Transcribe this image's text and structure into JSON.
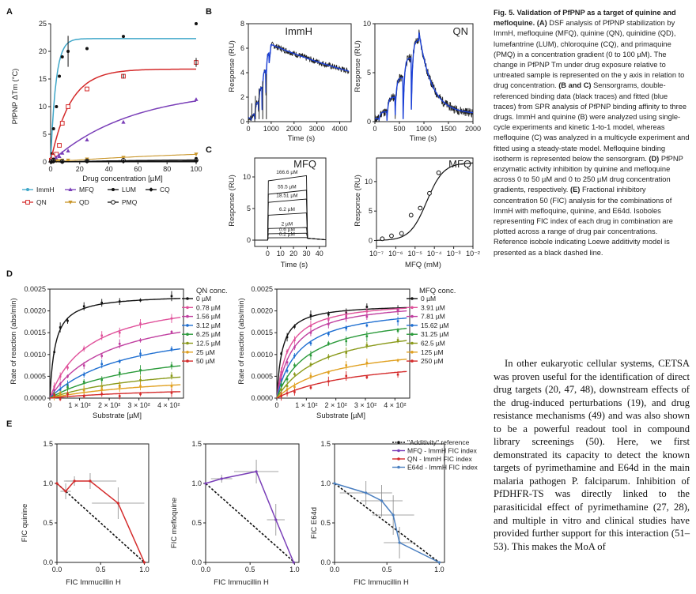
{
  "colors": {
    "blue": "#1f6fd1",
    "red": "#d42a2a",
    "purple": "#7a3fb8",
    "orange": "#c9962a",
    "teal": "#3fa7c9",
    "pink": "#e0509a",
    "magenta": "#c03fa0",
    "green": "#2a9a3a",
    "olive": "#8a9a1a",
    "gold": "#e0a020",
    "black": "#111111",
    "sprBlack": "#222222",
    "sprBlue": "#1a3fd6"
  },
  "panels": {
    "A": {
      "letter": "A",
      "xlabel": "Drug concentration [µM]",
      "ylabel": "PfPNP ΔTm (°C)"
    },
    "B": {
      "letter": "B",
      "left_title": "ImmH",
      "right_title": "QN",
      "ylabel": "Response (RU)",
      "xlabel": "Time (s)"
    },
    "C": {
      "letter": "C",
      "left_title": "MFQ",
      "right_title": "MFQ",
      "ylabel": "Response (RU)",
      "xlabel_left": "Time (s)",
      "xlabel_right": "MFQ (mM)",
      "concentrations": [
        "166.6 µM",
        "55.5 µM",
        "18.51 µM",
        "6.2 µM",
        "2 µM",
        "0.6 µM",
        "0.2 µM"
      ]
    },
    "D": {
      "letter": "D",
      "ylabel": "Rate of reaction (abs/min)",
      "xlabel": "Substrate [µM]",
      "left_legend_title": "QN conc.",
      "right_legend_title": "MFQ conc."
    },
    "E": {
      "letter": "E",
      "xlabel": "FIC Immucillin H",
      "ylabels": [
        "FIC quinine",
        "FIC mefloquine",
        "FIC E64d"
      ],
      "legend": [
        "\"Additivity\" reference",
        "MFQ - ImmH FIC index",
        "QN - ImmH FIC index",
        "E64d - ImmH FIC index"
      ]
    }
  },
  "chart_data": [
    {
      "id": "A",
      "type": "scatter",
      "xlim": [
        0,
        100
      ],
      "ylim": [
        0,
        25
      ],
      "xlabel": "Drug concentration [µM]",
      "ylabel": "PfPNP ΔTm (°C)",
      "xticks": [
        0,
        20,
        40,
        60,
        80,
        100
      ],
      "yticks": [
        0,
        5,
        10,
        15,
        20,
        25
      ],
      "series": [
        {
          "name": "ImmH",
          "color": "#3fa7c9",
          "marker": "dot",
          "fit": {
            "ymax": 22.3,
            "k": 0.28
          },
          "x": [
            0.5,
            1,
            2,
            4,
            6,
            8,
            12,
            25,
            50,
            100
          ],
          "y": [
            0.4,
            1.5,
            6,
            10,
            15.5,
            19,
            20,
            20.5,
            22.7,
            25
          ]
        },
        {
          "name": "QN",
          "color": "#d42a2a",
          "marker": "square",
          "fit": {
            "ymax": 16.8,
            "k": 0.075
          },
          "x": [
            0.5,
            1,
            2,
            4,
            6,
            8,
            12,
            25,
            50,
            100
          ],
          "y": [
            0.3,
            0.4,
            1,
            1.4,
            3,
            7,
            10,
            13.2,
            15.5,
            18
          ]
        },
        {
          "name": "MFQ",
          "color": "#7a3fb8",
          "marker": "triangle",
          "fit": {
            "ymax": 13.2,
            "k": 0.018
          },
          "x": [
            0.5,
            1,
            2,
            4,
            6,
            8,
            12,
            25,
            50,
            100
          ],
          "y": [
            0.2,
            0.2,
            0.3,
            0.6,
            1,
            1.6,
            2,
            4,
            7.2,
            11.3
          ]
        },
        {
          "name": "QD",
          "color": "#c9962a",
          "marker": "triangle-down",
          "fit": {
            "ymax": 2.5,
            "k": 0.008
          },
          "x": [
            0.5,
            1,
            2,
            4,
            6,
            8,
            12,
            25,
            50,
            100
          ],
          "y": [
            0.1,
            0.1,
            0.1,
            0.2,
            0.2,
            0.3,
            0.3,
            0.5,
            0.8,
            1.4
          ]
        },
        {
          "name": "LUM",
          "color": "#111111",
          "marker": "dot",
          "fit": {
            "ymax": 0.6,
            "k": 0.01
          },
          "x": [
            0.5,
            2,
            8,
            25,
            50,
            100
          ],
          "y": [
            0.2,
            0.5,
            0.2,
            0.3,
            0.4,
            0.6
          ]
        },
        {
          "name": "PMQ",
          "color": "#111111",
          "marker": "circle",
          "fit": {
            "ymax": 0.3,
            "k": 0.01
          },
          "x": [
            0.5,
            2,
            8,
            25,
            50,
            100
          ],
          "y": [
            0.1,
            0.2,
            0.1,
            0.2,
            0.3,
            0.3
          ]
        },
        {
          "name": "CQ",
          "color": "#111111",
          "marker": "diamond",
          "fit": {
            "ymax": 0.2,
            "k": 0.01
          },
          "x": [
            0.5,
            2,
            8,
            25,
            50,
            100
          ],
          "y": [
            0,
            0.1,
            0,
            0.1,
            0.1,
            0.2
          ]
        }
      ]
    },
    {
      "id": "B-ImmH",
      "type": "line",
      "title": "ImmH",
      "xlim": [
        0,
        4500
      ],
      "ylim": [
        0,
        8
      ],
      "xticks": [
        0,
        1000,
        2000,
        3000,
        4000
      ],
      "yticks": [
        0,
        2,
        4,
        6,
        8
      ],
      "xlabel": "Time (s)",
      "ylabel": "Response (RU)"
    },
    {
      "id": "B-QN",
      "type": "line",
      "title": "QN",
      "xlim": [
        0,
        2000
      ],
      "ylim": [
        0,
        10
      ],
      "xticks": [
        0,
        500,
        1000,
        1500,
        2000
      ],
      "yticks": [
        0,
        5,
        10
      ],
      "xlabel": "Time (s)",
      "ylabel": "Response (RU)"
    },
    {
      "id": "C-sensorgram",
      "type": "line",
      "title": "MFQ",
      "xlim": [
        -10,
        45
      ],
      "ylim": [
        -1,
        13
      ],
      "xticks": [
        0,
        10,
        20,
        30,
        40
      ],
      "yticks": [
        0,
        5,
        10
      ],
      "xlabel": "Time (s)",
      "ylabel": "Response (RU)",
      "plateaus": [
        10.2,
        7.9,
        6.5,
        4.3,
        2.0,
        1.1,
        0.4
      ]
    },
    {
      "id": "C-isotherm",
      "type": "scatter",
      "title": "MFQ",
      "xscale": "log",
      "xlim_exp": [
        -7,
        -2
      ],
      "ylim": [
        -1,
        14
      ],
      "xtick_labels": [
        "10⁻⁷",
        "10⁻⁶",
        "10⁻⁵",
        "10⁻⁴",
        "10⁻³",
        "10⁻²"
      ],
      "yticks": [
        0,
        5,
        10
      ],
      "xlabel": "MFQ (mM)",
      "ylabel": "Response (RU)",
      "x": [
        2e-07,
        6e-07,
        2e-06,
        6.2e-06,
        1.85e-05,
        5.55e-05,
        0.0001666
      ],
      "y": [
        0.3,
        0.8,
        1.2,
        4.3,
        5.5,
        8.0,
        11.5
      ],
      "fit": {
        "Rmax": 13.2,
        "Kd": 4e-05
      }
    },
    {
      "id": "D-QN",
      "type": "line",
      "legend_title": "QN conc.",
      "xlim": [
        0,
        450
      ],
      "ylim": [
        0,
        0.0025
      ],
      "yticks": [
        0,
        0.0005,
        0.001,
        0.0015,
        0.002,
        0.0025
      ],
      "ytick_labels": [
        "0.0000",
        "0.0005",
        "0.0010",
        "0.0015",
        "0.0020",
        "0.0025"
      ],
      "xtick_labels": [
        "0",
        "1 × 10²",
        "2 × 10²",
        "3 × 10²",
        "4 × 10²"
      ],
      "xlabel": "Substrate [µM]",
      "ylabel": "Rate of reaction (abs/min)",
      "xpoints": [
        15,
        35,
        60,
        115,
        175,
        235,
        305,
        410
      ],
      "series": [
        {
          "name": "0 µM",
          "color": "#111111",
          "vmax": 0.00238,
          "km": 18
        },
        {
          "name": "0.78 µM",
          "color": "#e0509a",
          "vmax": 0.0024,
          "km": 130
        },
        {
          "name": "1.56 µM",
          "color": "#c03fa0",
          "vmax": 0.0022,
          "km": 200
        },
        {
          "name": "3.12 µM",
          "color": "#1f6fd1",
          "vmax": 0.0018,
          "km": 260
        },
        {
          "name": "6.25 µM",
          "color": "#2a9a3a",
          "vmax": 0.0013,
          "km": 330
        },
        {
          "name": "12.5 µM",
          "color": "#8a9a1a",
          "vmax": 0.0009,
          "km": 380
        },
        {
          "name": "25 µM",
          "color": "#e0a020",
          "vmax": 0.0006,
          "km": 420
        },
        {
          "name": "50 µM",
          "color": "#d42a2a",
          "vmax": 0.0003,
          "km": 450
        }
      ]
    },
    {
      "id": "D-MFQ",
      "type": "line",
      "legend_title": "MFQ conc.",
      "xlim": [
        0,
        450
      ],
      "ylim": [
        0,
        0.0025
      ],
      "yticks": [
        0,
        0.0005,
        0.001,
        0.0015,
        0.002,
        0.0025
      ],
      "ytick_labels": [
        "0.0000",
        "0.0005",
        "0.0010",
        "0.0015",
        "0.0020",
        "0.0025"
      ],
      "xtick_labels": [
        "0",
        "1 × 10²",
        "2 × 10²",
        "3 × 10²",
        "4 × 10²"
      ],
      "xlabel": "Substrate [µM]",
      "ylabel": "Rate of reaction (abs/min)",
      "xpoints": [
        15,
        35,
        60,
        115,
        175,
        235,
        305,
        410
      ],
      "series": [
        {
          "name": "0 µM",
          "color": "#111111",
          "vmax": 0.00216,
          "km": 18
        },
        {
          "name": "3.91 µM",
          "color": "#e0509a",
          "vmax": 0.00225,
          "km": 40
        },
        {
          "name": "7.81 µM",
          "color": "#c03fa0",
          "vmax": 0.00225,
          "km": 55
        },
        {
          "name": "15.62 µM",
          "color": "#1f6fd1",
          "vmax": 0.00215,
          "km": 75
        },
        {
          "name": "31.25 µM",
          "color": "#2a9a3a",
          "vmax": 0.002,
          "km": 110
        },
        {
          "name": "62.5 µM",
          "color": "#8a9a1a",
          "vmax": 0.0018,
          "km": 160
        },
        {
          "name": "125 µM",
          "color": "#e0a020",
          "vmax": 0.0013,
          "km": 200
        },
        {
          "name": "250 µM",
          "color": "#d42a2a",
          "vmax": 0.001,
          "km": 280
        }
      ]
    },
    {
      "id": "E-QN",
      "type": "line",
      "xlim": [
        0,
        1.05
      ],
      "ylim": [
        0,
        1.5
      ],
      "xticks": [
        0,
        0.5,
        1.0
      ],
      "yticks": [
        0,
        0.5,
        1.0,
        1.5
      ],
      "xlabel": "FIC Immucillin H",
      "ylabel": "FIC quinine",
      "color": "#d42a2a",
      "x": [
        0,
        0.1,
        0.2,
        0.38,
        0.7,
        1.0
      ],
      "y": [
        1.0,
        0.9,
        1.03,
        1.03,
        0.75,
        0
      ],
      "xerr": [
        0,
        0.06,
        0.1,
        0.3,
        0.3,
        0
      ],
      "yerr": [
        0,
        0.1,
        0.06,
        0.1,
        0.2,
        0
      ]
    },
    {
      "id": "E-MFQ",
      "type": "line",
      "xlim": [
        0,
        1.05
      ],
      "ylim": [
        0,
        1.5
      ],
      "xticks": [
        0,
        0.5,
        1.0
      ],
      "yticks": [
        0,
        0.5,
        1.0,
        1.5
      ],
      "xlabel": "FIC Immucillin H",
      "ylabel": "FIC mefloquine",
      "color": "#7a3fb8",
      "x": [
        0,
        0.18,
        0.57,
        0.79,
        0.99
      ],
      "y": [
        1.0,
        1.06,
        1.15,
        0.54,
        0
      ],
      "xerr": [
        0,
        0.12,
        0.25,
        0.1,
        0
      ],
      "yerr": [
        0,
        0.05,
        0.15,
        0.2,
        0
      ]
    },
    {
      "id": "E-E64d",
      "type": "line",
      "xlim": [
        0,
        1.05
      ],
      "ylim": [
        0,
        1.5
      ],
      "xticks": [
        0,
        0.5,
        1.0
      ],
      "yticks": [
        0,
        0.5,
        1.0,
        1.5
      ],
      "xlabel": "FIC Immucillin H",
      "ylabel": "FIC E64d",
      "color": "#4a7fc0",
      "x": [
        0,
        0.3,
        0.45,
        0.56,
        0.62,
        1.0
      ],
      "y": [
        1.0,
        0.88,
        0.78,
        0.6,
        0.25,
        0
      ],
      "xerr": [
        0,
        0.25,
        0.2,
        0.2,
        0.15,
        0
      ],
      "yerr": [
        0,
        0.15,
        0.2,
        0.25,
        0.2,
        0
      ]
    }
  ],
  "caption": {
    "title": "Fig. 5. Validation of PfPNP as a target of quinine and mefloquine.",
    "paragraphs": [
      {
        "letter": "(A)",
        "text": " DSF analysis of PfPNP stabilization by ImmH, mefloquine (MFQ), quinine (QN), quinidine (QD), lumefantrine (LUM), chloroquine (CQ), and primaquine (PMQ) in a concentration gradient (0 to 100 µM). The change in PfPNP Tm under drug exposure relative to untreated sample is represented on the y axis in relation to drug concentration. "
      },
      {
        "letter": "(B and C)",
        "text": " Sensorgrams, double-referenced binding data (black traces) and fitted (blue traces) from SPR analysis of PfPNP binding affinity to three drugs. ImmH and quinine (B) were analyzed using single-cycle experiments and kinetic 1-to-1 model, whereas mefloquine (C) was analyzed in a multicycle experiment and fitted using a steady-state model. Mefloquine binding isotherm is represented below the sensorgram. "
      },
      {
        "letter": "(D)",
        "text": " PfPNP enzymatic activity inhibition by quinine and mefloquine across 0 to 50 µM and 0 to 250 µM drug concentration gradients, respectively. "
      },
      {
        "letter": "(E)",
        "text": " Fractional inhibitory concentration 50 (FIC) analysis for the combinations of ImmH with mefloquine, quinine, and E64d. Isoboles representing FIC index of each drug in combination are plotted across a range of drug pair concentrations. Reference isobole indicating Loewe additivity model is presented as a black dashed line."
      }
    ]
  },
  "body_text": "In other eukaryotic cellular systems, CETSA was proven useful for the identification of direct drug targets (20, 47, 48), downstream effects of the drug-induced perturbations (19), and drug resistance mechanisms (49) and was also shown to be a powerful readout tool in compound library screenings (50). Here, we first demonstrated its capacity to detect the known targets of pyrimethamine and E64d in the main malaria pathogen P. falciparum. Inhibition of PfDHFR-TS was directly linked to the parasiticidal effect of pyrimethamine (27, 28), and multiple in vitro and clinical studies have provided further support for this interaction (51–53). This makes the MoA of"
}
